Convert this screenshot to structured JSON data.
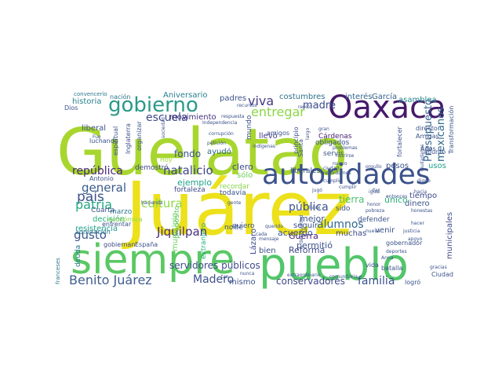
{
  "words": [
    {
      "text": "Guelatao",
      "color": "#a8d62e"
    },
    {
      "text": "Juárez",
      "color": "#ece11a"
    },
    {
      "text": "pueblo",
      "color": "#52c66a"
    },
    {
      "text": "siempre",
      "color": "#5ac864"
    },
    {
      "text": "Oaxaca",
      "color": "#46196a"
    },
    {
      "text": "autoridades",
      "color": "#3b528b"
    },
    {
      "text": "gobierno",
      "color": "#2a9a8a"
    },
    {
      "text": "Benito Juárez",
      "color": "#3f5d8f"
    },
    {
      "text": "viva",
      "color": "#443a83"
    },
    {
      "text": "entregar",
      "color": "#8bd646"
    },
    {
      "text": "madre",
      "color": "#3a4a8c"
    },
    {
      "text": "escuela",
      "color": "#3e4a89"
    },
    {
      "text": "república",
      "color": "#482778"
    },
    {
      "text": "natalicio",
      "color": "#3f4788"
    },
    {
      "text": "país",
      "color": "#3c4f8a"
    },
    {
      "text": "patria",
      "color": "#23a884"
    },
    {
      "text": "general",
      "color": "#3a5b8c"
    },
    {
      "text": "gusto",
      "color": "#39568c"
    },
    {
      "text": "cultura",
      "color": "#8fd744"
    },
    {
      "text": "Jiquilpan",
      "color": "#472d7b"
    },
    {
      "text": "Madero",
      "color": "#3c508b"
    },
    {
      "text": "conservadores",
      "color": "#3f4788"
    },
    {
      "text": "familia",
      "color": "#3b528b"
    },
    {
      "text": "alumnos",
      "color": "#31688e"
    },
    {
      "text": "pública",
      "color": "#3b528b"
    },
    {
      "text": "Presupuesto",
      "color": "#32658e"
    },
    {
      "text": "mexicanos",
      "color": "#31688e"
    },
    {
      "text": "tierra",
      "color": "#4ac16d"
    },
    {
      "text": "fondo",
      "color": "#3b528b"
    },
    {
      "text": "servidores públicos",
      "color": "#3e4a89"
    },
    {
      "text": "costumbres",
      "color": "#2c728e"
    },
    {
      "text": "interés",
      "color": "#32658e"
    },
    {
      "text": "García",
      "color": "#35608d"
    },
    {
      "text": "asamblea",
      "color": "#23898e"
    },
    {
      "text": "historia",
      "color": "#26828e"
    },
    {
      "text": "Aniversario",
      "color": "#277f8e"
    },
    {
      "text": "padres",
      "color": "#3b528b"
    },
    {
      "text": "movimiento",
      "color": "#46327e"
    },
    {
      "text": "liberal",
      "color": "#3b528b"
    },
    {
      "text": "Cárdenas",
      "color": "#482173"
    },
    {
      "text": "obligados",
      "color": "#3a548c"
    },
    {
      "text": "ejemplo",
      "color": "#1fa187"
    },
    {
      "text": "clero",
      "color": "#3e4a89"
    },
    {
      "text": "sólo",
      "color": "#6ccd5a"
    },
    {
      "text": "llevó",
      "color": "#443b84"
    },
    {
      "text": "mundo",
      "color": "#3b528b"
    },
    {
      "text": "decisión",
      "color": "#29af7f"
    },
    {
      "text": "resistencia",
      "color": "#1f9e89"
    },
    {
      "text": "municipio",
      "color": "#6ece58"
    },
    {
      "text": "ayudó",
      "color": "#31688e"
    },
    {
      "text": "Lázaro",
      "color": "#3e4989"
    },
    {
      "text": "bien",
      "color": "#3a548c"
    },
    {
      "text": "Guerra",
      "color": "#481c6e"
    },
    {
      "text": "permitió",
      "color": "#3b528b"
    },
    {
      "text": "acuerdo",
      "color": "#3b528b"
    },
    {
      "text": "Reforma",
      "color": "#3e4a89"
    },
    {
      "text": "mejor",
      "color": "#3b528b"
    },
    {
      "text": "seguir",
      "color": "#3b528b"
    },
    {
      "text": "muchas",
      "color": "#3e4a89"
    },
    {
      "text": "venir",
      "color": "#3b528b"
    },
    {
      "text": "dinero",
      "color": "#3b528b"
    },
    {
      "text": "tiempo",
      "color": "#3e4a89"
    },
    {
      "text": "único",
      "color": "#2db27d"
    },
    {
      "text": "sido",
      "color": "#3b528b"
    },
    {
      "text": "pesos",
      "color": "#3b528b"
    },
    {
      "text": "usos",
      "color": "#1fa187"
    },
    {
      "text": "municipales",
      "color": "#3e4a89"
    },
    {
      "text": "marzo",
      "color": "#2a788e"
    },
    {
      "text": "deuda",
      "color": "#2a788e"
    },
    {
      "text": "norte",
      "color": "#3b528b"
    },
    {
      "text": "mismo",
      "color": "#3b528b"
    },
    {
      "text": "extranjero",
      "color": "#2db27d"
    },
    {
      "text": "propósito",
      "color": "#5ec962"
    },
    {
      "text": "servir",
      "color": "#3b528b"
    },
    {
      "text": "liberales",
      "color": "#3b528b"
    },
    {
      "text": "demostró",
      "color": "#3e4a89"
    },
    {
      "text": "fortaleza",
      "color": "#3e4a89"
    },
    {
      "text": "recordar",
      "color": "#86d549"
    },
    {
      "text": "quiero",
      "color": "#3b528b"
    },
    {
      "text": "todavía",
      "color": "#3b528b"
    },
    {
      "text": "Cuarta",
      "color": "#3b528b"
    },
    {
      "text": "admiración",
      "color": "#2a788e"
    },
    {
      "text": "gobiernan",
      "color": "#3e4a89"
    },
    {
      "text": "España",
      "color": "#3b528b"
    },
    {
      "text": "económica",
      "color": "#8fd744"
    },
    {
      "text": "enfrentar",
      "color": "#3b528b"
    },
    {
      "text": "luchando",
      "color": "#3b528b"
    },
    {
      "text": "Antonio",
      "color": "#3b528b"
    },
    {
      "text": "espiritual",
      "color": "#3b528b"
    },
    {
      "text": "Inglaterra",
      "color": "#3e4a89"
    },
    {
      "text": "organizar",
      "color": "#3b528b"
    },
    {
      "text": "principio",
      "color": "#3b528b"
    },
    {
      "text": "amigos",
      "color": "#3b528b"
    },
    {
      "text": "fortalecer",
      "color": "#3b528b"
    },
    {
      "text": "Amigas",
      "color": "#3b528b"
    },
    {
      "text": "Años",
      "color": "#3b528b"
    },
    {
      "text": "Transformación",
      "color": "#3b528b"
    },
    {
      "text": "directo",
      "color": "#3b528b"
    },
    {
      "text": "apuntó",
      "color": "#3b528b"
    },
    {
      "text": "nación",
      "color": "#2a788e"
    },
    {
      "text": "Dios",
      "color": "#3b528b"
    },
    {
      "text": "convencerio",
      "color": "#2a788e"
    },
    {
      "text": "franceses",
      "color": "#2a788e"
    },
    {
      "text": "vida",
      "color": "#3b528b"
    },
    {
      "text": "batalla",
      "color": "#3b528b"
    },
    {
      "text": "Ciudad",
      "color": "#3b528b"
    },
    {
      "text": "logró",
      "color": "#3b528b"
    },
    {
      "text": "defender",
      "color": "#3b528b"
    },
    {
      "text": "gobernador",
      "color": "#3b528b"
    },
    {
      "text": "Santa",
      "color": "#3b528b"
    },
    {
      "text": "Hoy",
      "color": "#a0da39"
    },
    {
      "text": "nunca",
      "color": "#3b528b"
    },
    {
      "text": "tan",
      "color": "#3b528b"
    },
    {
      "text": "extraordinario",
      "color": "#3b528b"
    },
    {
      "text": "comunitaria",
      "color": "#3b528b"
    },
    {
      "text": "recursos",
      "color": "#3b528b"
    },
    {
      "text": "problemas",
      "color": "#3b528b"
    },
    {
      "text": "igual",
      "color": "#3b528b"
    },
    {
      "text": "honestas",
      "color": "#3b528b"
    },
    {
      "text": "Anna",
      "color": "#3b528b"
    },
    {
      "text": "hace",
      "color": "#3b528b"
    },
    {
      "text": "cumplir",
      "color": "#3b528b"
    },
    {
      "text": "cumplió",
      "color": "#3b528b"
    },
    {
      "text": "desigualdad",
      "color": "#3b528b"
    },
    {
      "text": "nutrirse",
      "color": "#3b528b"
    },
    {
      "text": "digno",
      "color": "#3b528b"
    },
    {
      "text": "hacer",
      "color": "#3b528b"
    },
    {
      "text": "pobreza",
      "color": "#3b528b"
    },
    {
      "text": "gente",
      "color": "#3b528b"
    },
    {
      "text": "querido",
      "color": "#3b528b"
    },
    {
      "text": "cada",
      "color": "#3b528b"
    },
    {
      "text": "mensaje",
      "color": "#3b528b"
    },
    {
      "text": "hacia",
      "color": "#3b528b"
    },
    {
      "text": "respuesta",
      "color": "#3b528b"
    },
    {
      "text": "corrupción",
      "color": "#3b528b"
    },
    {
      "text": "petición",
      "color": "#3b528b"
    },
    {
      "text": "sociedad",
      "color": "#3b528b"
    },
    {
      "text": "Independencia",
      "color": "#3b528b"
    },
    {
      "text": "indígenas",
      "color": "#3b528b"
    },
    {
      "text": "hacienda",
      "color": "#3b528b"
    },
    {
      "text": "Fue",
      "color": "#3b528b"
    },
    {
      "text": "entonces",
      "color": "#3b528b"
    },
    {
      "text": "ciudadanos",
      "color": "#3b528b"
    },
    {
      "text": "recordamos",
      "color": "#3b528b"
    },
    {
      "text": "orgullo",
      "color": "#3b528b"
    },
    {
      "text": "largo",
      "color": "#3b528b"
    },
    {
      "text": "gran",
      "color": "#3b528b"
    },
    {
      "text": "dar",
      "color": "#3b528b"
    },
    {
      "text": "honor",
      "color": "#3b528b"
    },
    {
      "text": "nueva",
      "color": "#3b528b"
    },
    {
      "text": "repito",
      "color": "#3b528b"
    },
    {
      "text": "nuevo",
      "color": "#3b528b"
    },
    {
      "text": "ciudad",
      "color": "#3b528b"
    },
    {
      "text": "jugó",
      "color": "#3b528b"
    },
    {
      "text": "justicia",
      "color": "#3b528b"
    },
    {
      "text": "apoyo",
      "color": "#3b528b"
    },
    {
      "text": "gracias",
      "color": "#3b528b"
    },
    {
      "text": "deportes",
      "color": "#3b528b"
    }
  ]
}
